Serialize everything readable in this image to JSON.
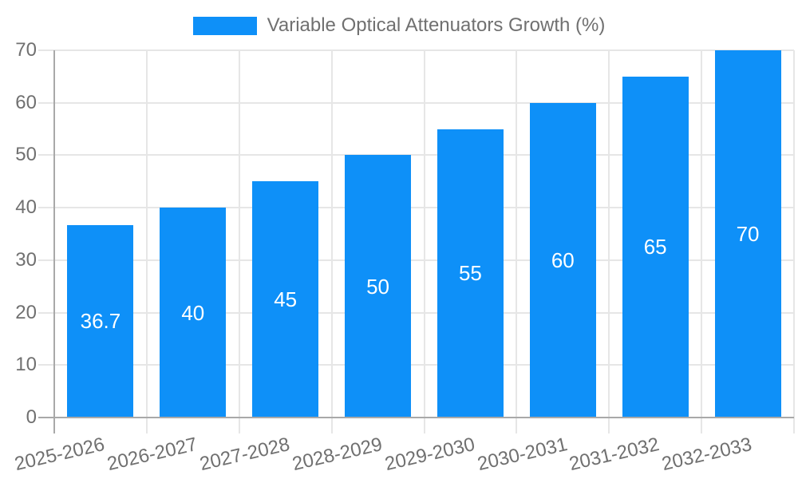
{
  "chart_data": {
    "type": "bar",
    "title": "",
    "xlabel": "",
    "ylabel": "",
    "categories": [
      "2025-2026",
      "2026-2027",
      "2027-2028",
      "2028-2029",
      "2029-2030",
      "2030-2031",
      "2031-2032",
      "2032-2033"
    ],
    "series": [
      {
        "name": "Variable Optical Attenuators Growth (%)",
        "values": [
          36.7,
          40,
          45,
          50,
          55,
          60,
          65,
          70
        ]
      }
    ],
    "bar_labels": [
      "36.7",
      "40",
      "45",
      "50",
      "55",
      "60",
      "65",
      "70"
    ],
    "ylim": [
      0,
      70
    ],
    "yticks": [
      0,
      10,
      20,
      30,
      40,
      50,
      60,
      70
    ],
    "grid": true,
    "legend_position": "top",
    "colors": {
      "bar": "#0e90f8",
      "bar_label": "#ffffff",
      "axis_text": "#707070",
      "grid_line": "#e6e6e6",
      "axis_line": "#a9a9a9",
      "background": "#ffffff"
    }
  }
}
